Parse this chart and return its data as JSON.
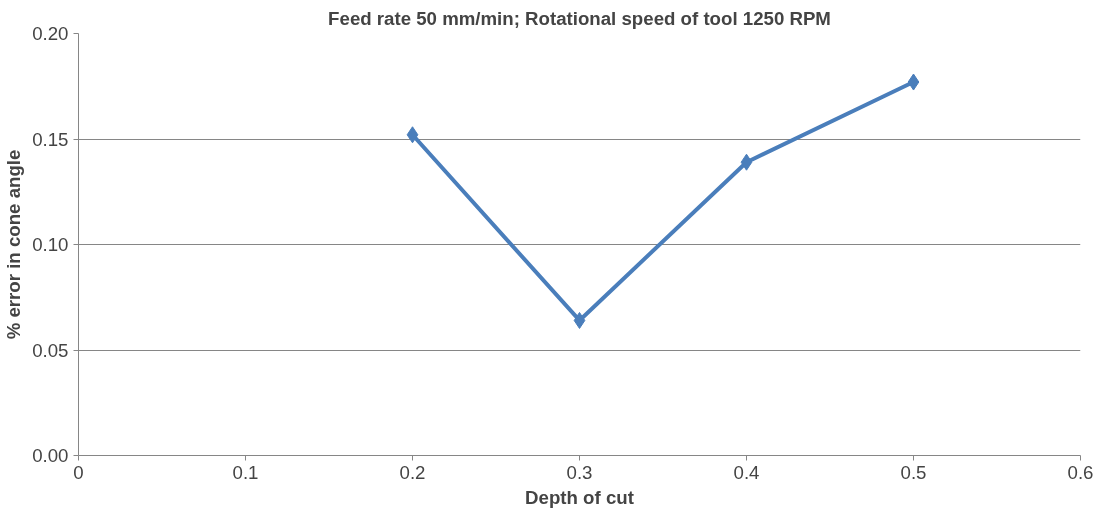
{
  "chart_data": {
    "type": "line",
    "title": "Feed rate 50 mm/min; Rotational speed of tool 1250 RPM",
    "xlabel": "Depth of cut",
    "ylabel": "% error in cone angle",
    "x": [
      0.2,
      0.3,
      0.4,
      0.5
    ],
    "series": [
      {
        "color": "#4a7ebb",
        "values": [
          0.152,
          0.064,
          0.139,
          0.177
        ]
      }
    ],
    "xlim": [
      0,
      0.6
    ],
    "xticks": [
      0,
      0.1,
      0.2,
      0.3,
      0.4,
      0.5,
      0.6
    ],
    "ylim": [
      0,
      0.2
    ],
    "yticks": [
      {
        "value": 0,
        "label": "0.00"
      },
      {
        "value": 0.05,
        "label": "0.05"
      },
      {
        "value": 0.1,
        "label": "0.10"
      },
      {
        "value": 0.15,
        "label": "0.15"
      },
      {
        "value": 0.2,
        "label": "0.20"
      }
    ],
    "grid": "y",
    "marker": "diamond",
    "line_style": "solid"
  }
}
